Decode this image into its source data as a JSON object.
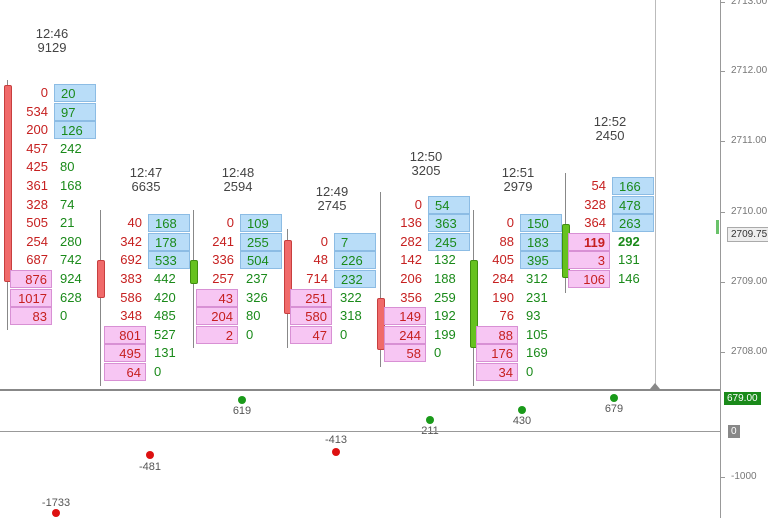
{
  "price_axis": {
    "ticks": [
      "2713.00",
      "2712.00",
      "2711.00",
      "2710.00",
      "2709.00",
      "2708.00"
    ],
    "current_price": "2709.75"
  },
  "delta_axis": {
    "current_value": "679.00",
    "zero_label": "0",
    "neg_label": "-1000"
  },
  "columns": [
    {
      "time": "12:46",
      "volume": "9129",
      "rows": [
        [
          "0",
          "20"
        ],
        [
          "534",
          "97"
        ],
        [
          "200",
          "126"
        ],
        [
          "457",
          "242"
        ],
        [
          "425",
          "80"
        ],
        [
          "361",
          "168"
        ],
        [
          "328",
          "74"
        ],
        [
          "505",
          "21"
        ],
        [
          "254",
          "280"
        ],
        [
          "687",
          "742"
        ],
        [
          "876",
          "924"
        ],
        [
          "1017",
          "628"
        ],
        [
          "83",
          "0"
        ]
      ],
      "delta": "-1733"
    },
    {
      "time": "12:47",
      "volume": "6635",
      "rows": [
        [
          "40",
          "168"
        ],
        [
          "342",
          "178"
        ],
        [
          "692",
          "533"
        ],
        [
          "383",
          "442"
        ],
        [
          "586",
          "420"
        ],
        [
          "348",
          "485"
        ],
        [
          "801",
          "527"
        ],
        [
          "495",
          "131"
        ],
        [
          "64",
          "0"
        ]
      ],
      "delta": "-481"
    },
    {
      "time": "12:48",
      "volume": "2594",
      "rows": [
        [
          "0",
          "109"
        ],
        [
          "241",
          "255"
        ],
        [
          "336",
          "504"
        ],
        [
          "257",
          "237"
        ],
        [
          "43",
          "326"
        ],
        [
          "204",
          "80"
        ],
        [
          "2",
          "0"
        ]
      ],
      "delta": "619"
    },
    {
      "time": "12:49",
      "volume": "2745",
      "rows": [
        [
          "0",
          "7"
        ],
        [
          "48",
          "226"
        ],
        [
          "714",
          "232"
        ],
        [
          "251",
          "322"
        ],
        [
          "580",
          "318"
        ],
        [
          "47",
          "0"
        ]
      ],
      "delta": "-413"
    },
    {
      "time": "12:50",
      "volume": "3205",
      "rows": [
        [
          "0",
          "54"
        ],
        [
          "136",
          "363"
        ],
        [
          "282",
          "245"
        ],
        [
          "142",
          "132"
        ],
        [
          "206",
          "188"
        ],
        [
          "356",
          "259"
        ],
        [
          "149",
          "192"
        ],
        [
          "244",
          "199"
        ],
        [
          "58",
          "0"
        ]
      ],
      "delta": "211"
    },
    {
      "time": "12:51",
      "volume": "2979",
      "rows": [
        [
          "0",
          "150"
        ],
        [
          "88",
          "183"
        ],
        [
          "405",
          "395"
        ],
        [
          "284",
          "312"
        ],
        [
          "190",
          "231"
        ],
        [
          "76",
          "93"
        ],
        [
          "88",
          "105"
        ],
        [
          "176",
          "169"
        ],
        [
          "34",
          "0"
        ]
      ],
      "delta": "430"
    },
    {
      "time": "12:52",
      "volume": "2450",
      "rows": [
        [
          "54",
          "166"
        ],
        [
          "328",
          "478"
        ],
        [
          "364",
          "263"
        ],
        [
          "119",
          "292"
        ],
        [
          "3",
          "131"
        ],
        [
          "106",
          "146"
        ]
      ],
      "delta": "679"
    }
  ],
  "colors": {
    "bull": "#66c21f",
    "bear": "#f06a6a",
    "bid_text": "#c62020",
    "ask_text": "#1a8a1a",
    "pink": "#f7c6f3",
    "blue": "#b9ddf8"
  }
}
